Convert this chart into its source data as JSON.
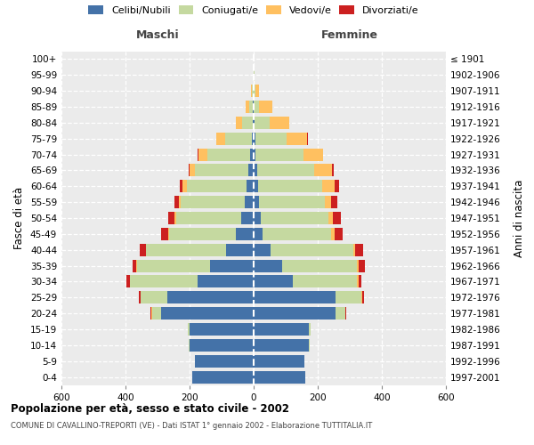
{
  "age_groups": [
    "0-4",
    "5-9",
    "10-14",
    "15-19",
    "20-24",
    "25-29",
    "30-34",
    "35-39",
    "40-44",
    "45-49",
    "50-54",
    "55-59",
    "60-64",
    "65-69",
    "70-74",
    "75-79",
    "80-84",
    "85-89",
    "90-94",
    "95-99",
    "100+"
  ],
  "birth_years": [
    "1997-2001",
    "1992-1996",
    "1987-1991",
    "1982-1986",
    "1977-1981",
    "1972-1976",
    "1967-1971",
    "1962-1966",
    "1957-1961",
    "1952-1956",
    "1947-1951",
    "1942-1946",
    "1937-1941",
    "1932-1936",
    "1927-1931",
    "1922-1926",
    "1917-1921",
    "1912-1916",
    "1907-1911",
    "1902-1906",
    "≤ 1901"
  ],
  "males": {
    "celibi": [
      192,
      182,
      200,
      200,
      290,
      270,
      175,
      135,
      85,
      55,
      38,
      28,
      22,
      18,
      12,
      6,
      3,
      2,
      1,
      0,
      0
    ],
    "coniugati": [
      0,
      0,
      2,
      5,
      28,
      82,
      210,
      230,
      250,
      210,
      205,
      200,
      185,
      165,
      132,
      82,
      32,
      12,
      5,
      1,
      0
    ],
    "vedovi": [
      0,
      0,
      0,
      0,
      2,
      2,
      2,
      2,
      2,
      2,
      5,
      5,
      14,
      18,
      28,
      28,
      20,
      10,
      2,
      0,
      0
    ],
    "divorziati": [
      0,
      0,
      0,
      0,
      2,
      5,
      10,
      10,
      18,
      22,
      20,
      14,
      10,
      2,
      2,
      0,
      0,
      0,
      0,
      0,
      0
    ]
  },
  "females": {
    "nubili": [
      162,
      158,
      172,
      172,
      255,
      255,
      122,
      88,
      52,
      28,
      22,
      16,
      13,
      10,
      6,
      5,
      2,
      1,
      1,
      0,
      0
    ],
    "coniugate": [
      0,
      0,
      2,
      5,
      30,
      82,
      200,
      235,
      260,
      215,
      210,
      205,
      200,
      180,
      150,
      97,
      48,
      16,
      5,
      2,
      0
    ],
    "vedove": [
      0,
      0,
      0,
      0,
      2,
      2,
      5,
      5,
      5,
      10,
      15,
      20,
      40,
      55,
      60,
      65,
      60,
      40,
      10,
      2,
      0
    ],
    "divorziate": [
      0,
      0,
      0,
      0,
      2,
      5,
      10,
      20,
      25,
      25,
      25,
      20,
      15,
      5,
      2,
      2,
      0,
      0,
      0,
      0,
      0
    ]
  },
  "colors": {
    "celibi": "#4472a8",
    "coniugati": "#c5d9a0",
    "vedovi": "#ffc060",
    "divorziati": "#cc2020"
  },
  "xlim": 600,
  "title": "Popolazione per età, sesso e stato civile - 2002",
  "subtitle": "COMUNE DI CAVALLINO-TREPORTI (VE) - Dati ISTAT 1° gennaio 2002 - Elaborazione TUTTITALIA.IT",
  "ylabel_left": "Fasce di età",
  "ylabel_right": "Anni di nascita",
  "xlabel_male": "Maschi",
  "xlabel_female": "Femmine"
}
